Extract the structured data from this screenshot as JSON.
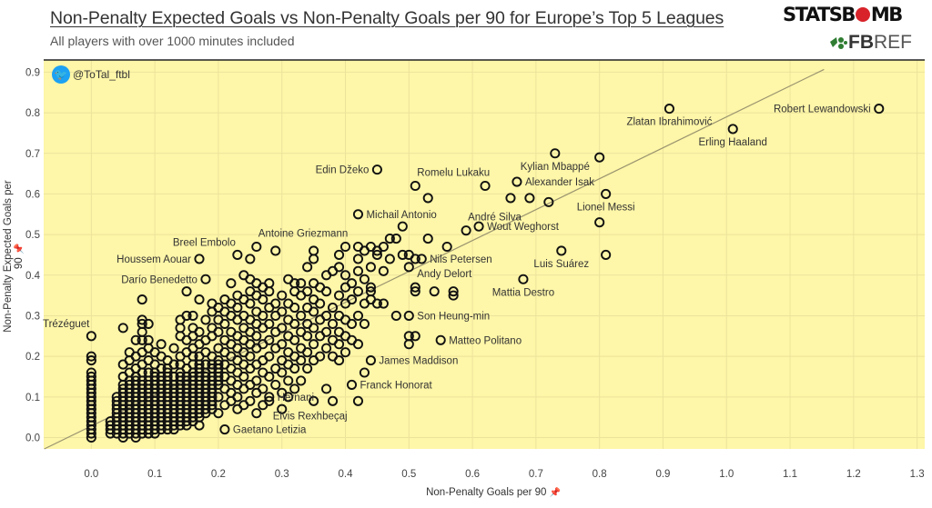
{
  "header": {
    "title": "Non-Penalty Expected Goals vs Non-Penalty Goals per 90 for Europe’s Top 5 Leagues",
    "subtitle": "All players with over 1000 minutes included",
    "logo_statsbomb": "STATSBOMB",
    "logo_fbref": "FBREF",
    "twitter_handle": "@ToTal_ftbl"
  },
  "colors": {
    "background": "#fef6a8",
    "grid": "#ece39c",
    "marker": "#111111",
    "trendline": "#9a9470",
    "twitter": "#1da1f2",
    "statsbomb_red": "#d8232a",
    "fbref_green": "#2f7d32"
  },
  "chart_data": {
    "type": "scatter",
    "title": "Non-Penalty Expected Goals vs Non-Penalty Goals per 90 for Europe’s Top 5 Leagues",
    "xlabel": "Non-Penalty Goals per 90",
    "ylabel": "Non-Penalty Expected Goals per 90",
    "xlim": [
      -0.075,
      1.312
    ],
    "ylim": [
      -0.028,
      0.93
    ],
    "xticks": [
      "0.0",
      "0.1",
      "0.2",
      "0.3",
      "0.4",
      "0.5",
      "0.6",
      "0.7",
      "0.8",
      "0.9",
      "1.0",
      "1.1",
      "1.2",
      "1.3"
    ],
    "yticks": [
      "0.0",
      "0.1",
      "0.2",
      "0.3",
      "0.4",
      "0.5",
      "0.6",
      "0.7",
      "0.8",
      "0.9"
    ],
    "grid": true,
    "marker": "hollow-circle",
    "trendline": {
      "slope": 0.756,
      "intercept": 0.028
    },
    "labeled_points": [
      {
        "label": "Robert Lewandowski",
        "x": 1.24,
        "y": 0.81,
        "pos": "left"
      },
      {
        "label": "Zlatan Ibrahimović",
        "x": 0.91,
        "y": 0.81,
        "pos": "below"
      },
      {
        "label": "Erling Haaland",
        "x": 1.01,
        "y": 0.76,
        "pos": "below"
      },
      {
        "label": "Kylian Mbappé",
        "x": 0.73,
        "y": 0.7,
        "pos": "below"
      },
      {
        "label": "Alexander Isak",
        "x": 0.67,
        "y": 0.63,
        "pos": "right"
      },
      {
        "label": "Lionel Messi",
        "x": 0.81,
        "y": 0.6,
        "pos": "below"
      },
      {
        "label": "Luis Suárez",
        "x": 0.74,
        "y": 0.46,
        "pos": "below"
      },
      {
        "label": "Mattia Destro",
        "x": 0.68,
        "y": 0.39,
        "pos": "below"
      },
      {
        "label": "Wout Weghorst",
        "x": 0.61,
        "y": 0.52,
        "pos": "right"
      },
      {
        "label": "André Silva",
        "x": 0.59,
        "y": 0.51,
        "pos": "above-right"
      },
      {
        "label": "Romelu Lukaku",
        "x": 0.51,
        "y": 0.62,
        "pos": "above-right"
      },
      {
        "label": "Edin Džeko",
        "x": 0.45,
        "y": 0.66,
        "pos": "left"
      },
      {
        "label": "Michail Antonio",
        "x": 0.42,
        "y": 0.55,
        "pos": "right"
      },
      {
        "label": "Nils Petersen",
        "x": 0.52,
        "y": 0.44,
        "pos": "right"
      },
      {
        "label": "Andy Delort",
        "x": 0.51,
        "y": 0.37,
        "pos": "above-right"
      },
      {
        "label": "Son Heung-min",
        "x": 0.5,
        "y": 0.3,
        "pos": "right"
      },
      {
        "label": "Matteo Politano",
        "x": 0.55,
        "y": 0.24,
        "pos": "right"
      },
      {
        "label": "James Maddison",
        "x": 0.44,
        "y": 0.19,
        "pos": "right"
      },
      {
        "label": "Franck Honorat",
        "x": 0.41,
        "y": 0.13,
        "pos": "right"
      },
      {
        "label": "Hernani",
        "x": 0.28,
        "y": 0.1,
        "pos": "right"
      },
      {
        "label": "Elvis Rexhbeçaj",
        "x": 0.28,
        "y": 0.09,
        "pos": "below-right"
      },
      {
        "label": "Gaetano Letizia",
        "x": 0.21,
        "y": 0.02,
        "pos": "right"
      },
      {
        "label": "Trézéguet",
        "x": 0.0,
        "y": 0.25,
        "pos": "above-left"
      },
      {
        "label": "Darío Benedetto",
        "x": 0.18,
        "y": 0.39,
        "pos": "left"
      },
      {
        "label": "Houssem Aouar",
        "x": 0.17,
        "y": 0.44,
        "pos": "left"
      },
      {
        "label": "Breel Embolo",
        "x": 0.23,
        "y": 0.45,
        "pos": "above-left"
      },
      {
        "label": "Antoine Griezmann",
        "x": 0.26,
        "y": 0.47,
        "pos": "above-right"
      }
    ],
    "points_by_x": [
      [
        0.0,
        [
          0,
          0.01,
          0.02,
          0.03,
          0.04,
          0.05,
          0.06,
          0.07,
          0.08,
          0.09,
          0.1,
          0.11,
          0.12,
          0.13,
          0.14,
          0.15,
          0.16,
          0.19,
          0.2
        ]
      ],
      [
        0.03,
        [
          0.01,
          0.02,
          0.03,
          0.04
        ]
      ],
      [
        0.04,
        [
          0.01,
          0.02,
          0.03,
          0.04,
          0.05,
          0.06,
          0.07,
          0.08,
          0.09,
          0.1
        ]
      ],
      [
        0.05,
        [
          0,
          0.01,
          0.02,
          0.03,
          0.04,
          0.05,
          0.06,
          0.07,
          0.08,
          0.09,
          0.1,
          0.11,
          0.12,
          0.13,
          0.15,
          0.18,
          0.27
        ]
      ],
      [
        0.06,
        [
          0.01,
          0.02,
          0.03,
          0.04,
          0.05,
          0.06,
          0.07,
          0.08,
          0.09,
          0.1,
          0.11,
          0.12,
          0.13,
          0.14,
          0.16,
          0.19,
          0.21
        ]
      ],
      [
        0.07,
        [
          0,
          0.01,
          0.02,
          0.03,
          0.04,
          0.05,
          0.06,
          0.07,
          0.08,
          0.09,
          0.1,
          0.11,
          0.12,
          0.13,
          0.14,
          0.15,
          0.17,
          0.2,
          0.24
        ]
      ],
      [
        0.08,
        [
          0.01,
          0.02,
          0.03,
          0.04,
          0.05,
          0.06,
          0.07,
          0.08,
          0.09,
          0.1,
          0.11,
          0.12,
          0.13,
          0.14,
          0.16,
          0.18,
          0.21,
          0.24,
          0.26,
          0.28,
          0.29,
          0.34
        ]
      ],
      [
        0.09,
        [
          0.01,
          0.02,
          0.03,
          0.04,
          0.05,
          0.06,
          0.07,
          0.08,
          0.09,
          0.1,
          0.11,
          0.12,
          0.13,
          0.14,
          0.16,
          0.19,
          0.22,
          0.24,
          0.28
        ]
      ],
      [
        0.1,
        [
          0.01,
          0.02,
          0.03,
          0.04,
          0.05,
          0.06,
          0.07,
          0.08,
          0.09,
          0.1,
          0.11,
          0.12,
          0.13,
          0.14,
          0.15,
          0.16,
          0.18,
          0.21
        ]
      ],
      [
        0.11,
        [
          0.02,
          0.03,
          0.04,
          0.05,
          0.06,
          0.07,
          0.08,
          0.09,
          0.1,
          0.11,
          0.12,
          0.13,
          0.14,
          0.15,
          0.17,
          0.2,
          0.23
        ]
      ],
      [
        0.12,
        [
          0.02,
          0.03,
          0.04,
          0.05,
          0.06,
          0.07,
          0.08,
          0.09,
          0.1,
          0.11,
          0.12,
          0.13,
          0.14,
          0.15,
          0.16,
          0.17,
          0.19
        ]
      ],
      [
        0.13,
        [
          0.02,
          0.03,
          0.04,
          0.05,
          0.06,
          0.07,
          0.08,
          0.09,
          0.1,
          0.11,
          0.12,
          0.13,
          0.15,
          0.18,
          0.22
        ]
      ],
      [
        0.14,
        [
          0.03,
          0.04,
          0.05,
          0.06,
          0.07,
          0.08,
          0.09,
          0.1,
          0.11,
          0.12,
          0.13,
          0.14,
          0.15,
          0.16,
          0.18,
          0.2,
          0.25,
          0.27,
          0.29
        ]
      ],
      [
        0.15,
        [
          0.03,
          0.04,
          0.05,
          0.06,
          0.07,
          0.08,
          0.09,
          0.1,
          0.11,
          0.12,
          0.13,
          0.14,
          0.15,
          0.17,
          0.21,
          0.24,
          0.3,
          0.36
        ]
      ],
      [
        0.16,
        [
          0.04,
          0.05,
          0.06,
          0.07,
          0.08,
          0.09,
          0.1,
          0.11,
          0.12,
          0.13,
          0.14,
          0.15,
          0.16,
          0.18,
          0.2,
          0.22,
          0.25,
          0.27,
          0.3
        ]
      ],
      [
        0.17,
        [
          0.03,
          0.05,
          0.06,
          0.07,
          0.08,
          0.09,
          0.1,
          0.11,
          0.12,
          0.13,
          0.14,
          0.15,
          0.16,
          0.17,
          0.18,
          0.2,
          0.23,
          0.26,
          0.34
        ]
      ],
      [
        0.18,
        [
          0.06,
          0.07,
          0.08,
          0.09,
          0.1,
          0.11,
          0.12,
          0.13,
          0.14,
          0.15,
          0.16,
          0.18,
          0.21,
          0.24,
          0.29
        ]
      ],
      [
        0.19,
        [
          0.07,
          0.08,
          0.09,
          0.1,
          0.11,
          0.12,
          0.13,
          0.14,
          0.15,
          0.17,
          0.18,
          0.2,
          0.25,
          0.27,
          0.31,
          0.33
        ]
      ],
      [
        0.2,
        [
          0.06,
          0.1,
          0.13,
          0.14,
          0.15,
          0.16,
          0.17,
          0.18,
          0.19,
          0.22,
          0.26,
          0.29,
          0.32
        ]
      ],
      [
        0.21,
        [
          0.08,
          0.12,
          0.15,
          0.18,
          0.21,
          0.24,
          0.28,
          0.31,
          0.34
        ]
      ],
      [
        0.22,
        [
          0.09,
          0.11,
          0.14,
          0.17,
          0.2,
          0.23,
          0.26,
          0.3,
          0.33,
          0.38
        ]
      ],
      [
        0.23,
        [
          0.07,
          0.1,
          0.13,
          0.16,
          0.19,
          0.22,
          0.25,
          0.29,
          0.32,
          0.35
        ]
      ],
      [
        0.24,
        [
          0.08,
          0.12,
          0.15,
          0.18,
          0.21,
          0.24,
          0.27,
          0.3,
          0.34,
          0.4
        ]
      ],
      [
        0.25,
        [
          0.09,
          0.13,
          0.17,
          0.2,
          0.23,
          0.26,
          0.29,
          0.33,
          0.36,
          0.39,
          0.44
        ]
      ],
      [
        0.26,
        [
          0.06,
          0.11,
          0.14,
          0.18,
          0.22,
          0.25,
          0.28,
          0.31,
          0.35,
          0.38
        ]
      ],
      [
        0.27,
        [
          0.08,
          0.12,
          0.16,
          0.19,
          0.23,
          0.27,
          0.3,
          0.34,
          0.37
        ]
      ],
      [
        0.28,
        [
          0.15,
          0.2,
          0.24,
          0.28,
          0.32,
          0.36,
          0.38
        ]
      ],
      [
        0.29,
        [
          0.13,
          0.17,
          0.22,
          0.26,
          0.3,
          0.33,
          0.46
        ]
      ],
      [
        0.3,
        [
          0.07,
          0.11,
          0.16,
          0.19,
          0.23,
          0.27,
          0.31,
          0.35
        ]
      ],
      [
        0.31,
        [
          0.1,
          0.14,
          0.18,
          0.21,
          0.25,
          0.29,
          0.33,
          0.39
        ]
      ],
      [
        0.32,
        [
          0.12,
          0.17,
          0.2,
          0.24,
          0.28,
          0.32,
          0.36,
          0.38
        ]
      ],
      [
        0.33,
        [
          0.14,
          0.19,
          0.22,
          0.26,
          0.3,
          0.35,
          0.38
        ]
      ],
      [
        0.34,
        [
          0.17,
          0.21,
          0.25,
          0.28,
          0.32,
          0.36,
          0.42
        ]
      ],
      [
        0.35,
        [
          0.09,
          0.19,
          0.23,
          0.27,
          0.31,
          0.34,
          0.38,
          0.44,
          0.46
        ]
      ],
      [
        0.36,
        [
          0.2,
          0.25,
          0.29,
          0.33,
          0.37
        ]
      ],
      [
        0.37,
        [
          0.12,
          0.22,
          0.26,
          0.3,
          0.36,
          0.4
        ]
      ],
      [
        0.38,
        [
          0.09,
          0.2,
          0.24,
          0.28,
          0.32,
          0.41
        ]
      ],
      [
        0.39,
        [
          0.19,
          0.23,
          0.26,
          0.3,
          0.35,
          0.42,
          0.45
        ]
      ],
      [
        0.4,
        [
          0.21,
          0.25,
          0.29,
          0.33,
          0.37,
          0.4,
          0.47
        ]
      ],
      [
        0.41,
        [
          0.24,
          0.28,
          0.34,
          0.38
        ]
      ],
      [
        0.42,
        [
          0.09,
          0.23,
          0.3,
          0.36,
          0.41,
          0.44,
          0.47
        ]
      ],
      [
        0.43,
        [
          0.16,
          0.28,
          0.33,
          0.39,
          0.46
        ]
      ],
      [
        0.44,
        [
          0.34,
          0.36,
          0.37,
          0.42,
          0.47
        ]
      ],
      [
        0.45,
        [
          0.33,
          0.45,
          0.46
        ]
      ],
      [
        0.46,
        [
          0.33,
          0.41,
          0.47
        ]
      ],
      [
        0.47,
        [
          0.44,
          0.49
        ]
      ],
      [
        0.48,
        [
          0.3,
          0.49
        ]
      ],
      [
        0.49,
        [
          0.45,
          0.52
        ]
      ],
      [
        0.5,
        [
          0.23,
          0.25,
          0.42,
          0.45
        ]
      ],
      [
        0.51,
        [
          0.25,
          0.36,
          0.44
        ]
      ],
      [
        0.53,
        [
          0.49,
          0.59
        ]
      ],
      [
        0.54,
        [
          0.36
        ]
      ],
      [
        0.56,
        [
          0.47
        ]
      ],
      [
        0.57,
        [
          0.35,
          0.36
        ]
      ],
      [
        0.62,
        [
          0.62
        ]
      ],
      [
        0.66,
        [
          0.59
        ]
      ],
      [
        0.69,
        [
          0.59
        ]
      ],
      [
        0.72,
        [
          0.58
        ]
      ],
      [
        0.8,
        [
          0.53,
          0.69
        ]
      ],
      [
        0.81,
        [
          0.45
        ]
      ]
    ]
  }
}
